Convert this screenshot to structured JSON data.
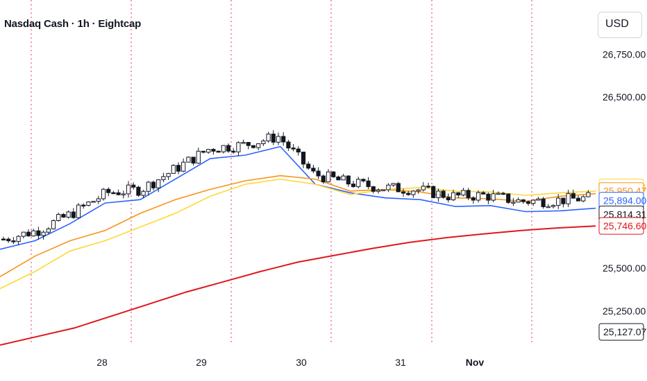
{
  "header": {
    "title": "Nasdaq Cash · 1h · Eightcap",
    "currency": "USD"
  },
  "chart_data": {
    "type": "candlestick",
    "title": "Nasdaq Cash · 1h · Eightcap",
    "x_ticks": [
      "28",
      "29",
      "30",
      "31",
      "Nov"
    ],
    "y_ticks": [
      "26,750.00",
      "26,500.00",
      "25,500.00",
      "25,250.00"
    ],
    "ylim": [
      25050,
      26800
    ],
    "grid": false,
    "session_separators": 6,
    "series": [
      {
        "name": "",
        "color": "#2962ff",
        "last": "25,894.00",
        "values": [
          25610,
          25660,
          25760,
          25880,
          25900,
          26020,
          26140,
          26160,
          26210,
          25990,
          25940,
          25910,
          25900,
          25860,
          25865,
          25830,
          25835,
          25850
        ]
      },
      {
        "name": "",
        "color": "#f7931a",
        "last": "25,950.47",
        "values": [
          25450,
          25570,
          25660,
          25720,
          25820,
          25900,
          25960,
          26010,
          26040,
          26020,
          25950,
          25960,
          25945,
          25910,
          25905,
          25890,
          25920,
          25935
        ]
      },
      {
        "name": "",
        "color": "#fdd835",
        "last": "25,971.84",
        "values": [
          25380,
          25480,
          25600,
          25660,
          25740,
          25820,
          25920,
          25990,
          26020,
          25990,
          25930,
          25960,
          25970,
          25950,
          25945,
          25925,
          25940,
          25950
        ]
      },
      {
        "name": "",
        "color": "#e0161b",
        "last": "25,746.60",
        "values": [
          25050,
          25100,
          25150,
          25220,
          25290,
          25360,
          25420,
          25480,
          25535,
          25575,
          25615,
          25650,
          25678,
          25700,
          25720,
          25735,
          25746
        ]
      }
    ],
    "price_labels": [
      {
        "text": "25,971.84",
        "color": "#fdd835",
        "value": 25971.84
      },
      {
        "text": "25,950.47",
        "color": "#f7931a",
        "value": 25950.47
      },
      {
        "text": "25,894.00",
        "color": "#2962ff",
        "value": 25894.0
      },
      {
        "text": "25,814.31",
        "color": "#131722",
        "value": 25814.31
      },
      {
        "text": "25,746.60",
        "color": "#e0161b",
        "value": 25746.6
      },
      {
        "text": "25,127.07",
        "color": "#131722",
        "value": 25127.07
      }
    ]
  }
}
